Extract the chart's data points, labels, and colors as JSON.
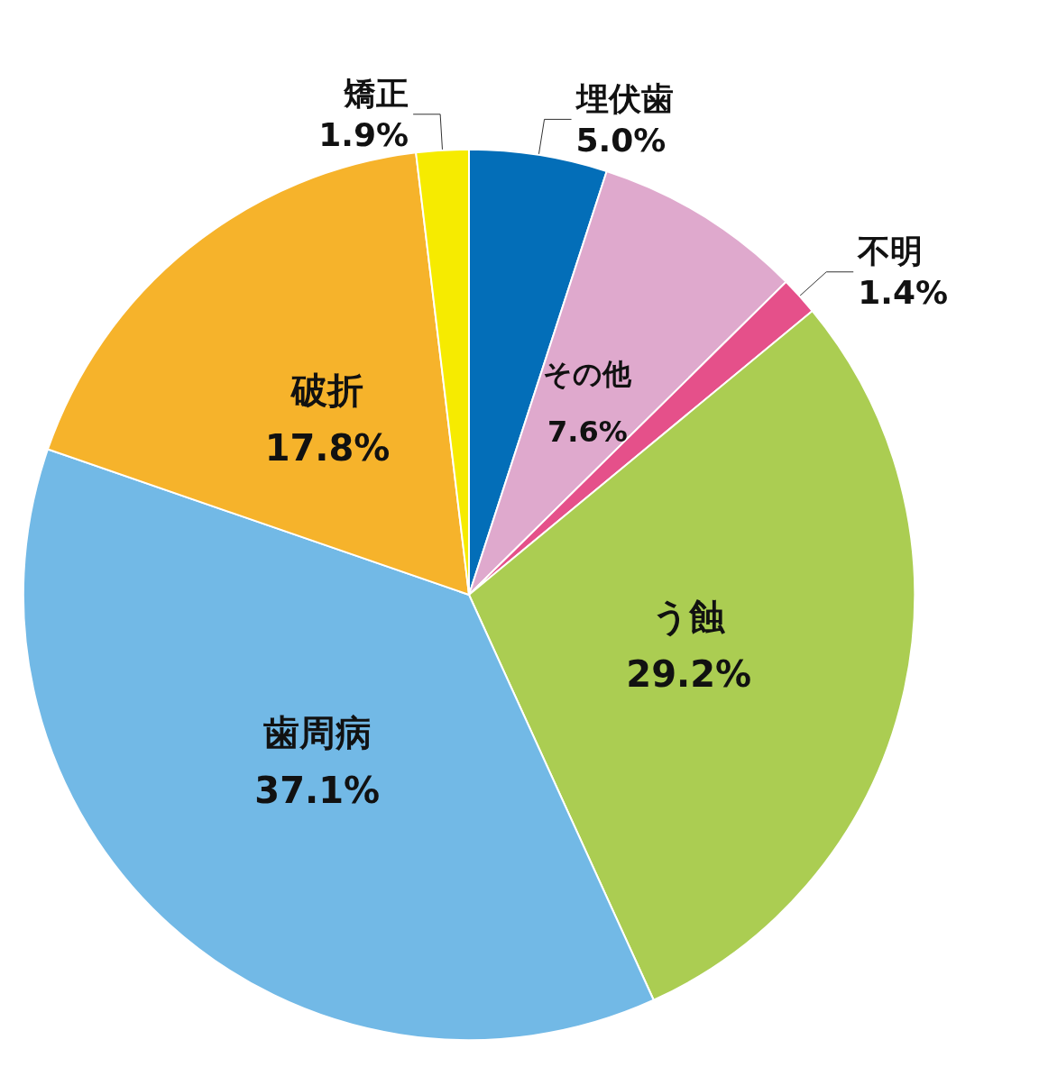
{
  "chart_data": {
    "type": "pie",
    "categories": [
      "埋伏歯",
      "その他",
      "不明",
      "う蝕",
      "歯周病",
      "破折",
      "矯正"
    ],
    "values": [
      5.0,
      7.6,
      1.4,
      29.2,
      37.1,
      17.8,
      1.9
    ],
    "value_labels": [
      "5.0%",
      "7.6%",
      "1.4%",
      "29.2%",
      "37.1%",
      "17.8%",
      "1.9%"
    ],
    "colors": [
      "#036eb8",
      "#dfa9cd",
      "#e5508a",
      "#abcd52",
      "#72b9e6",
      "#f6b32b",
      "#f6eb00"
    ],
    "legend": false
  }
}
